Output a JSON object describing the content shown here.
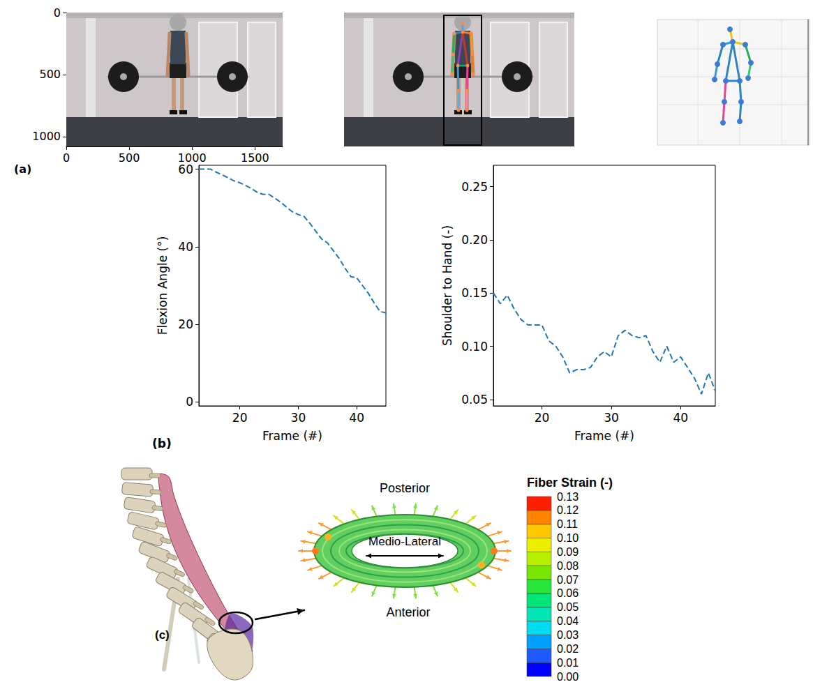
{
  "panel_labels": [
    "(a)",
    "(b)",
    "(c)"
  ],
  "image_axes": {
    "xlim": [
      0,
      1720
    ],
    "xticks": [
      0,
      500,
      1000,
      1500
    ],
    "ylim": [
      1080,
      0
    ],
    "yticks": [
      0,
      500,
      1000
    ]
  },
  "chart_data": [
    {
      "type": "line",
      "x_label": "Frame (#)",
      "y_label": "Flexion Angle (°)",
      "x": [
        13,
        14,
        15,
        16,
        17,
        18,
        19,
        20,
        21,
        22,
        23,
        24,
        25,
        26,
        27,
        28,
        29,
        30,
        31,
        32,
        33,
        34,
        35,
        36,
        37,
        38,
        39,
        40,
        41,
        42,
        43,
        44,
        45
      ],
      "values": [
        60,
        60,
        60,
        59.2,
        58.5,
        57.8,
        57,
        56.5,
        55.8,
        55,
        54,
        53.5,
        53.5,
        52.5,
        51.5,
        50.2,
        49,
        48.3,
        47.8,
        46,
        44,
        42,
        41,
        39,
        37,
        34.5,
        32.3,
        32,
        30,
        28,
        25.5,
        23.3,
        23
      ],
      "color": "#1f77b4",
      "line_style": "dashed",
      "xlim": [
        13,
        45
      ],
      "xticks": [
        20,
        30,
        40
      ],
      "ylim": [
        -1,
        61
      ],
      "yticks": [
        0,
        20,
        40,
        60
      ],
      "grid": false
    },
    {
      "type": "line",
      "x_label": "Frame (#)",
      "y_label": "Shoulder to Hand (-)",
      "x": [
        13,
        14,
        15,
        16,
        17,
        18,
        19,
        20,
        21,
        22,
        23,
        24,
        25,
        26,
        27,
        28,
        29,
        30,
        31,
        32,
        33,
        34,
        35,
        36,
        37,
        38,
        39,
        40,
        41,
        42,
        43,
        44,
        45
      ],
      "values": [
        0.15,
        0.14,
        0.148,
        0.135,
        0.125,
        0.12,
        0.12,
        0.12,
        0.105,
        0.1,
        0.09,
        0.075,
        0.078,
        0.078,
        0.08,
        0.09,
        0.095,
        0.09,
        0.11,
        0.115,
        0.11,
        0.108,
        0.11,
        0.095,
        0.085,
        0.1,
        0.085,
        0.09,
        0.08,
        0.07,
        0.055,
        0.075,
        0.058
      ],
      "color": "#1f77b4",
      "line_style": "dashed",
      "xlim": [
        13,
        45
      ],
      "xticks": [
        20,
        30,
        40
      ],
      "ylim": [
        0.044,
        0.27
      ],
      "yticks": [
        0.05,
        {
          "value": 0.1,
          "label": "0.10"
        },
        0.15,
        {
          "value": 0.2,
          "label": "0.20"
        },
        0.25
      ],
      "grid": false
    }
  ],
  "disc_diagram": {
    "labels": {
      "posterior": "Posterior",
      "medio_lateral": "Medio-Lateral",
      "anterior": "Anterior"
    },
    "colorbar": {
      "title": "Fiber Strain (-)",
      "range": [
        0,
        0.13
      ],
      "ticks": [
        {
          "value": 0,
          "label": "0.00"
        },
        {
          "value": 0.01,
          "label": "0.01"
        },
        {
          "value": 0.02,
          "label": "0.02"
        },
        {
          "value": 0.03,
          "label": "0.03"
        },
        {
          "value": 0.04,
          "label": "0.04"
        },
        {
          "value": 0.05,
          "label": "0.05"
        },
        {
          "value": 0.06,
          "label": "0.06"
        },
        {
          "value": 0.07,
          "label": "0.07"
        },
        {
          "value": 0.08,
          "label": "0.08"
        },
        {
          "value": 0.09,
          "label": "0.09"
        },
        {
          "value": 0.1,
          "label": "0.10"
        },
        {
          "value": 0.11,
          "label": "0.11"
        },
        {
          "value": 0.12,
          "label": "0.12"
        },
        {
          "value": 0.13,
          "label": "0.13"
        }
      ],
      "colors": [
        "#0000ff",
        "#1e5aff",
        "#00a0ff",
        "#00dcf0",
        "#00e6b4",
        "#00e678",
        "#28e63c",
        "#78e600",
        "#b4f000",
        "#ebf000",
        "#ffc800",
        "#ff8200",
        "#ff1e00"
      ]
    }
  }
}
